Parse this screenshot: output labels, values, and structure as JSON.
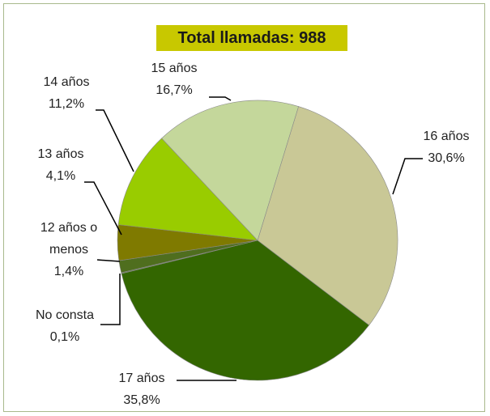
{
  "chart_data": {
    "type": "pie",
    "title": "Total llamadas: 988",
    "categories": [
      "16 años",
      "17 años",
      "No consta",
      "12 años o menos",
      "13 años",
      "14 años",
      "15 años"
    ],
    "values": [
      30.6,
      35.8,
      0.1,
      1.4,
      4.1,
      11.2,
      16.7
    ],
    "value_labels": [
      "30,6%",
      "35,8%",
      "0,1%",
      "1,4%",
      "4,1%",
      "11,2%",
      "16,7%"
    ],
    "colors": [
      "#c9c896",
      "#336600",
      "#5a7a36",
      "#4f6e1e",
      "#7f7a00",
      "#99cc00",
      "#c4d79b"
    ]
  }
}
